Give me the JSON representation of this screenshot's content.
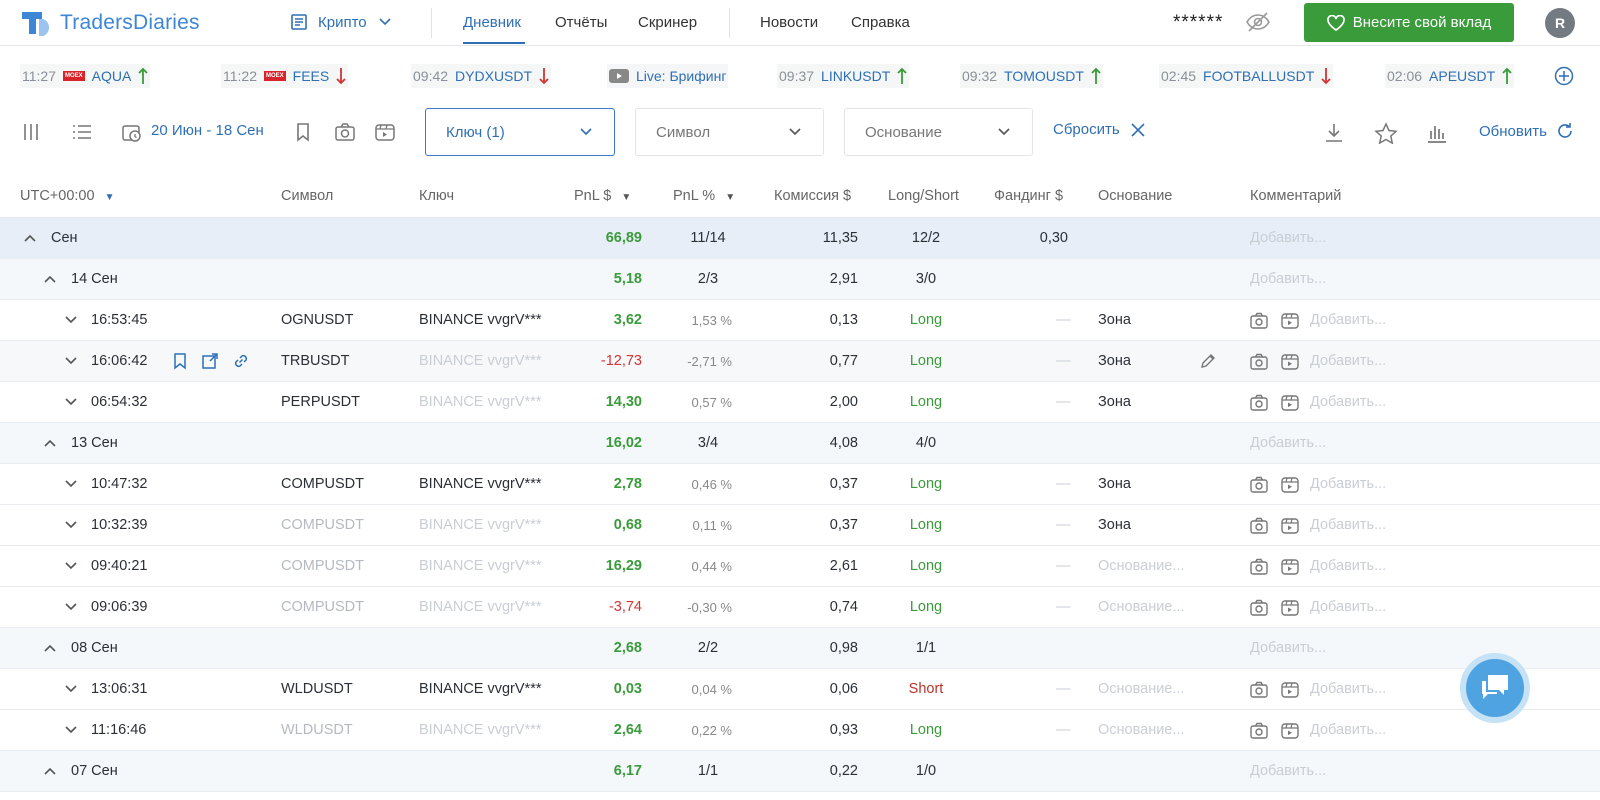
{
  "header": {
    "logo_text": "TradersDiaries",
    "market_label": "Крипто",
    "nav": [
      "Дневник",
      "Отчёты",
      "Скринер",
      "Новости",
      "Справка"
    ],
    "balance_mask": "******",
    "donate_label": "Внесите свой вклад",
    "avatar_initial": "R"
  },
  "ticker": [
    {
      "time": "11:27",
      "symbol": "AQUA",
      "dir": "up",
      "badge": "MOEX"
    },
    {
      "time": "11:22",
      "symbol": "FEES",
      "dir": "down",
      "badge": "MOEX"
    },
    {
      "time": "09:42",
      "symbol": "DYDXUSDT",
      "dir": "down"
    },
    {
      "live": "Live: Брифинг"
    },
    {
      "time": "09:37",
      "symbol": "LINKUSDT",
      "dir": "up"
    },
    {
      "time": "09:32",
      "symbol": "TOMOUSDT",
      "dir": "up"
    },
    {
      "time": "02:45",
      "symbol": "FOOTBALLUSDT",
      "dir": "down"
    },
    {
      "time": "02:06",
      "symbol": "APEUSDT",
      "dir": "up"
    }
  ],
  "toolbar": {
    "date_range": "20 Июн - 18 Сен",
    "filter_key": "Ключ (1)",
    "filter_symbol": "Символ",
    "filter_basis": "Основание",
    "reset_label": "Сбросить",
    "refresh_label": "Обновить"
  },
  "table": {
    "headers": {
      "time": "UTC+00:00",
      "symbol": "Символ",
      "key": "Ключ",
      "pnl": "PnL $",
      "pnl_pct": "PnL %",
      "commission": "Комиссия $",
      "long_short": "Long/Short",
      "funding": "Фандинг $",
      "basis": "Основание",
      "comment": "Комментарий"
    },
    "add_placeholder": "Добавить...",
    "basis_placeholder": "Основание...",
    "dash": "—",
    "rows": [
      {
        "type": "month",
        "label": "Сен",
        "pnl": "66,89",
        "pnl_sign": "pos",
        "pct": "11/14",
        "commission": "11,35",
        "ls": "12/2",
        "funding": "0,30"
      },
      {
        "type": "day",
        "label": "14 Сен",
        "pnl": "5,18",
        "pnl_sign": "pos",
        "pct": "2/3",
        "commission": "2,91",
        "ls": "3/0"
      },
      {
        "type": "trade",
        "time": "16:53:45",
        "symbol": "OGNUSDT",
        "key": "BINANCE vvgrV***",
        "pnl": "3,62",
        "pnl_sign": "pos",
        "pct": "1,53 %",
        "commission": "0,13",
        "ls": "Long",
        "basis": "Зона",
        "dim_symbol": false,
        "dim_key": false
      },
      {
        "type": "trade",
        "time": "16:06:42",
        "symbol": "TRBUSDT",
        "key": "BINANCE vvgrV***",
        "pnl": "-12,73",
        "pnl_sign": "neg",
        "pct": "-2,71 %",
        "commission": "0,77",
        "ls": "Long",
        "basis": "Зона",
        "dim_symbol": false,
        "dim_key": true,
        "hover": true
      },
      {
        "type": "trade",
        "time": "06:54:32",
        "symbol": "PERPUSDT",
        "key": "BINANCE vvgrV***",
        "pnl": "14,30",
        "pnl_sign": "pos",
        "pct": "0,57 %",
        "commission": "2,00",
        "ls": "Long",
        "basis": "Зона",
        "dim_symbol": false,
        "dim_key": true
      },
      {
        "type": "day",
        "label": "13 Сен",
        "pnl": "16,02",
        "pnl_sign": "pos",
        "pct": "3/4",
        "commission": "4,08",
        "ls": "4/0"
      },
      {
        "type": "trade",
        "time": "10:47:32",
        "symbol": "COMPUSDT",
        "key": "BINANCE vvgrV***",
        "pnl": "2,78",
        "pnl_sign": "pos",
        "pct": "0,46 %",
        "commission": "0,37",
        "ls": "Long",
        "basis": "Зона",
        "dim_symbol": false,
        "dim_key": false
      },
      {
        "type": "trade",
        "time": "10:32:39",
        "symbol": "COMPUSDT",
        "key": "BINANCE vvgrV***",
        "pnl": "0,68",
        "pnl_sign": "pos",
        "pct": "0,11 %",
        "commission": "0,37",
        "ls": "Long",
        "basis": "Зона",
        "dim_symbol": true,
        "dim_key": true
      },
      {
        "type": "trade",
        "time": "09:40:21",
        "symbol": "COMPUSDT",
        "key": "BINANCE vvgrV***",
        "pnl": "16,29",
        "pnl_sign": "pos",
        "pct": "0,44 %",
        "commission": "2,61",
        "ls": "Long",
        "basis": "",
        "dim_symbol": true,
        "dim_key": true
      },
      {
        "type": "trade",
        "time": "09:06:39",
        "symbol": "COMPUSDT",
        "key": "BINANCE vvgrV***",
        "pnl": "-3,74",
        "pnl_sign": "neg",
        "pct": "-0,30 %",
        "commission": "0,74",
        "ls": "Long",
        "basis": "",
        "dim_symbol": true,
        "dim_key": true
      },
      {
        "type": "day",
        "label": "08 Сен",
        "pnl": "2,68",
        "pnl_sign": "pos",
        "pct": "2/2",
        "commission": "0,98",
        "ls": "1/1"
      },
      {
        "type": "trade",
        "time": "13:06:31",
        "symbol": "WLDUSDT",
        "key": "BINANCE vvgrV***",
        "pnl": "0,03",
        "pnl_sign": "pos",
        "pct": "0,04 %",
        "commission": "0,06",
        "ls": "Short",
        "basis": "",
        "dim_symbol": false,
        "dim_key": false
      },
      {
        "type": "trade",
        "time": "11:16:46",
        "symbol": "WLDUSDT",
        "key": "BINANCE vvgrV***",
        "pnl": "2,64",
        "pnl_sign": "pos",
        "pct": "0,22 %",
        "commission": "0,93",
        "ls": "Long",
        "basis": "",
        "dim_symbol": true,
        "dim_key": true
      },
      {
        "type": "day",
        "label": "07 Сен",
        "pnl": "6,17",
        "pnl_sign": "pos",
        "pct": "1/1",
        "commission": "0,22",
        "ls": "1/0"
      }
    ]
  },
  "colors": {
    "accent": "#2f6fb6",
    "positive": "#3a9b3a",
    "negative": "#d23434",
    "donate": "#3a9b3a"
  }
}
